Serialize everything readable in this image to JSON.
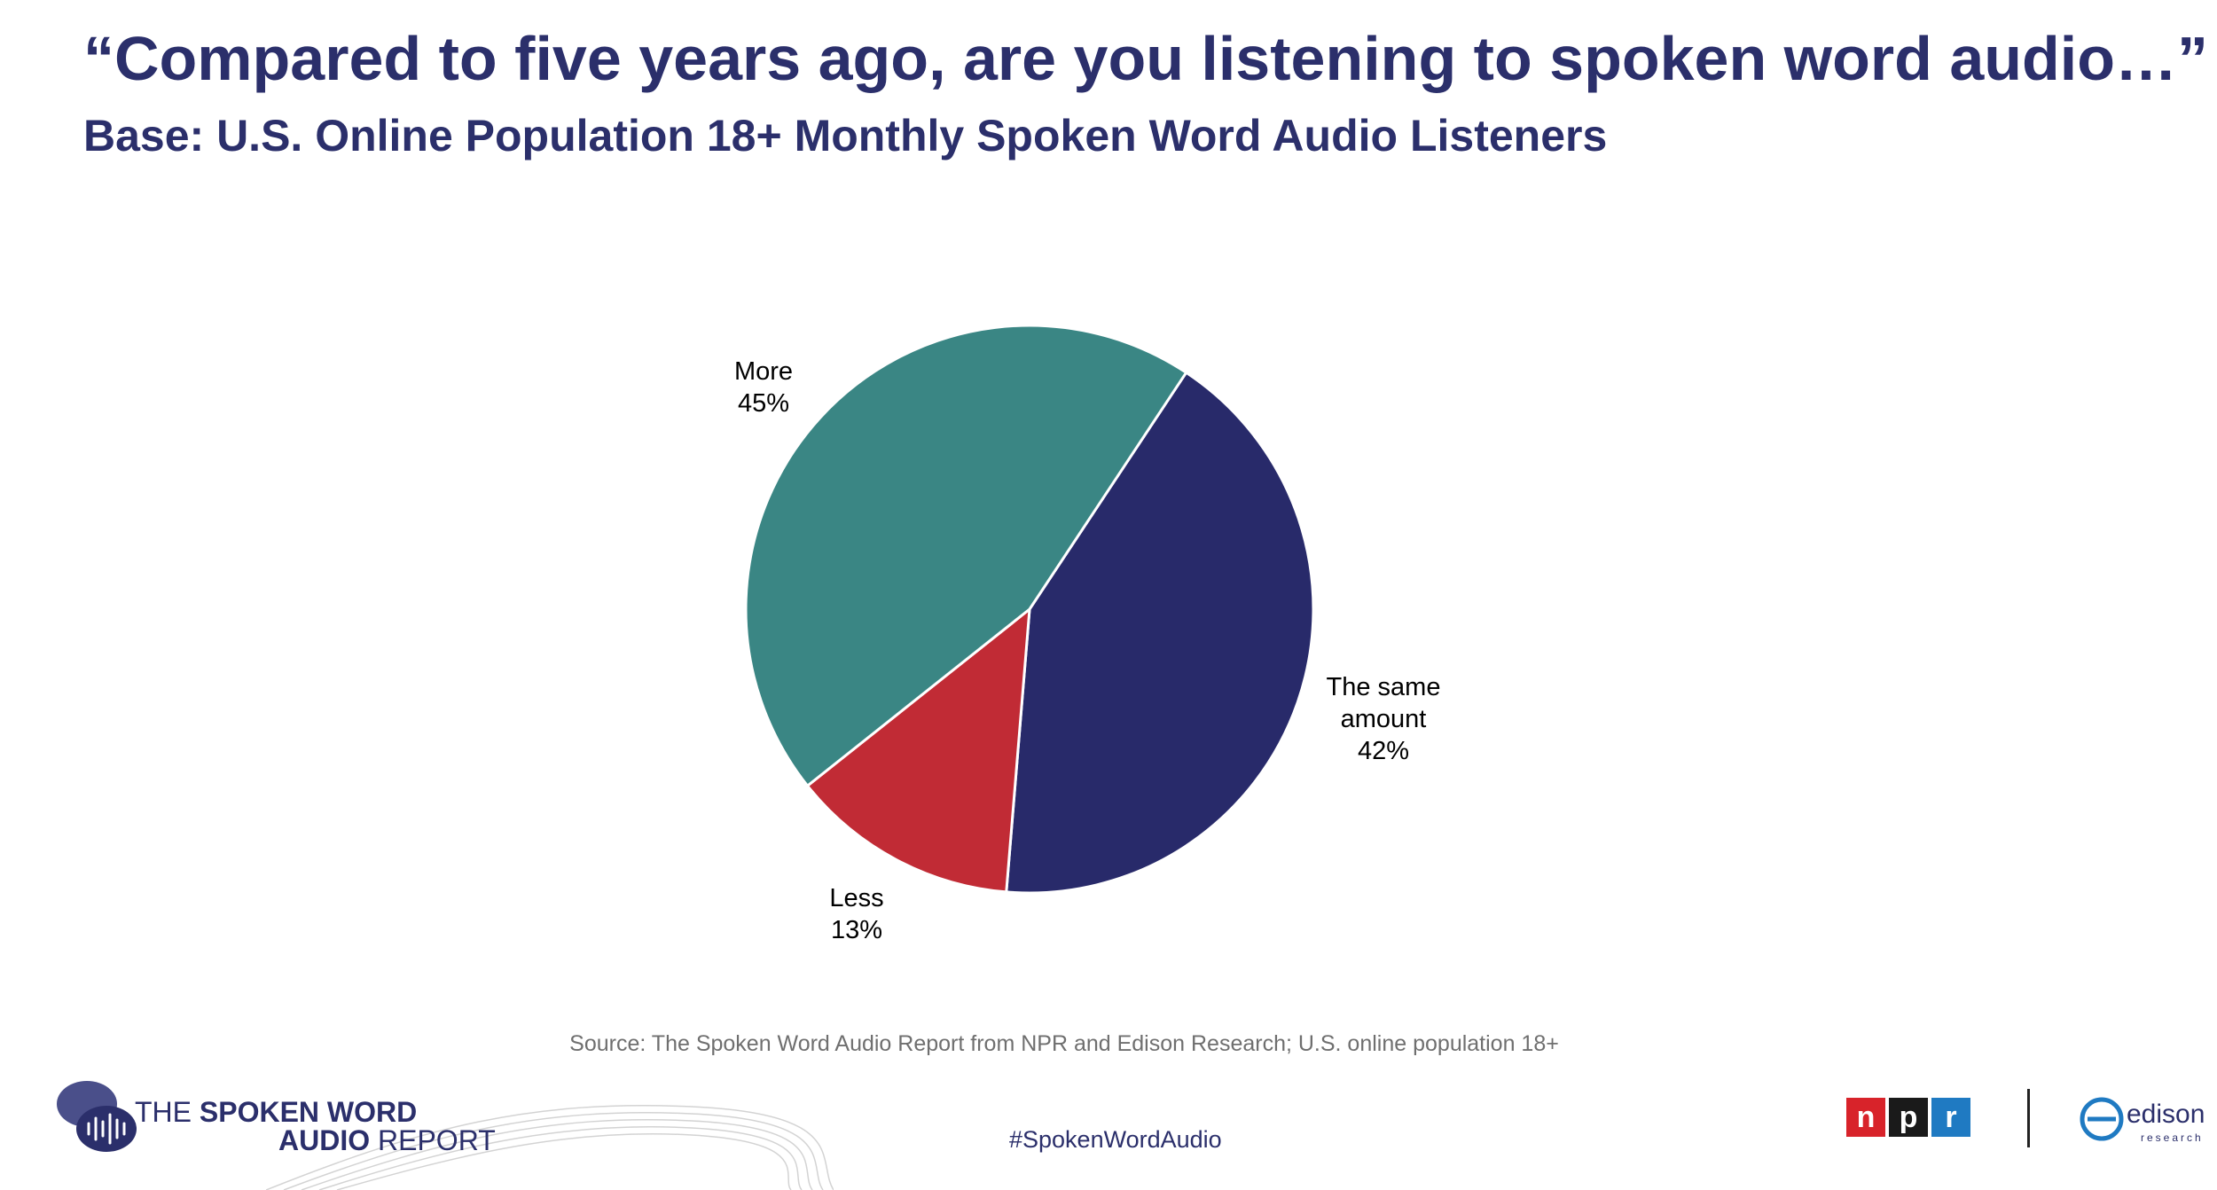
{
  "title": "“Compared to five years ago, are you listening to spoken word audio…”",
  "subtitle": "Base: U.S. Online Population 18+ Monthly Spoken Word Audio Listeners",
  "chart_data": {
    "type": "pie",
    "title": "“Compared to five years ago, are you listening to spoken word audio…”",
    "subtitle": "Base: U.S. Online Population 18+ Monthly Spoken Word Audio Listeners",
    "slices": [
      {
        "label": "More",
        "value": 45,
        "display": "45%",
        "color": "#3a8684"
      },
      {
        "label": "The same amount",
        "value": 42,
        "display": "42%",
        "color": "#282a6a"
      },
      {
        "label": "Less",
        "value": 13,
        "display": "13%",
        "color": "#c12b35"
      }
    ],
    "start_slice": "The same amount",
    "direction": "clockwise",
    "legend": "none"
  },
  "footer": {
    "source": "Source: The Spoken Word Audio Report from NPR and Edison Research; U.S. online population 18+",
    "hashtag": "#SpokenWordAudio",
    "report_logo": {
      "line1_regular": "THE ",
      "line1_bold": "SPOKEN WORD",
      "line2_bold": "AUDIO",
      "line2_regular": " REPORT",
      "icon": "speech-bubbles-soundwave-icon"
    },
    "npr_logo": {
      "letters": [
        "n",
        "p",
        "r"
      ],
      "colors": [
        "#d8232a",
        "#1a1a1a",
        "#1f7ac2"
      ]
    },
    "edison_logo": {
      "word": "edison",
      "sub": "research",
      "color": "#1f7ac2"
    }
  }
}
